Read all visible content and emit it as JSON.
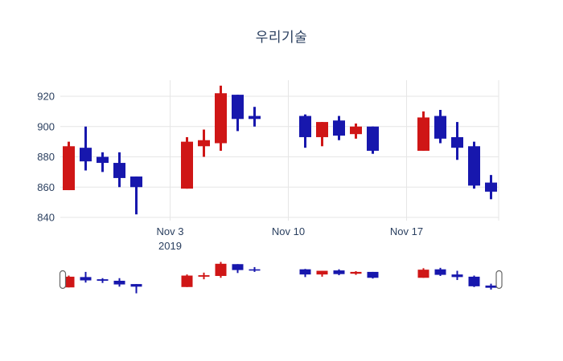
{
  "chart_data": {
    "type": "candlestick",
    "title": "우리기술",
    "xlabel": "",
    "ylabel": "",
    "ylim": [
      838,
      931
    ],
    "grid": "on",
    "yticks": [
      840,
      860,
      880,
      900,
      920
    ],
    "xticks": [
      {
        "label": "Nov 3",
        "sublabel": "2019",
        "day": 6
      },
      {
        "label": "Nov 10",
        "sublabel": "",
        "day": 13
      },
      {
        "label": "Nov 17",
        "sublabel": "",
        "day": 20
      }
    ],
    "colors": {
      "up": "#cf1616",
      "down": "#1717ad",
      "grid": "#e6e6e6",
      "text": "#2a3f5f",
      "handle_fill": "#ffffff",
      "handle_border": "#666666",
      "background": "#ffffff"
    },
    "candles": [
      {
        "date": "Oct 28",
        "day": 0,
        "open": 858,
        "high": 890,
        "low": 858,
        "close": 887
      },
      {
        "date": "Oct 29",
        "day": 1,
        "open": 886,
        "high": 900,
        "low": 871,
        "close": 877
      },
      {
        "date": "Oct 30",
        "day": 2,
        "open": 880,
        "high": 883,
        "low": 870,
        "close": 876
      },
      {
        "date": "Oct 31",
        "day": 3,
        "open": 876,
        "high": 883,
        "low": 860,
        "close": 866
      },
      {
        "date": "Nov 1",
        "day": 4,
        "open": 867,
        "high": 867,
        "low": 842,
        "close": 860
      },
      {
        "date": "Nov 4",
        "day": 7,
        "open": 859,
        "high": 893,
        "low": 859,
        "close": 890
      },
      {
        "date": "Nov 5",
        "day": 8,
        "open": 887,
        "high": 898,
        "low": 880,
        "close": 891
      },
      {
        "date": "Nov 6",
        "day": 9,
        "open": 889,
        "high": 927,
        "low": 884,
        "close": 922
      },
      {
        "date": "Nov 7",
        "day": 10,
        "open": 921,
        "high": 921,
        "low": 897,
        "close": 905
      },
      {
        "date": "Nov 8",
        "day": 11,
        "open": 907,
        "high": 913,
        "low": 900,
        "close": 905
      },
      {
        "date": "Nov 11",
        "day": 14,
        "open": 907,
        "high": 908,
        "low": 886,
        "close": 893
      },
      {
        "date": "Nov 12",
        "day": 15,
        "open": 893,
        "high": 903,
        "low": 887,
        "close": 903
      },
      {
        "date": "Nov 13",
        "day": 16,
        "open": 904,
        "high": 907,
        "low": 891,
        "close": 894
      },
      {
        "date": "Nov 14",
        "day": 17,
        "open": 895,
        "high": 902,
        "low": 892,
        "close": 900
      },
      {
        "date": "Nov 15",
        "day": 18,
        "open": 900,
        "high": 900,
        "low": 882,
        "close": 884
      },
      {
        "date": "Nov 18",
        "day": 21,
        "open": 884,
        "high": 910,
        "low": 884,
        "close": 906
      },
      {
        "date": "Nov 19",
        "day": 22,
        "open": 907,
        "high": 911,
        "low": 889,
        "close": 892
      },
      {
        "date": "Nov 20",
        "day": 23,
        "open": 893,
        "high": 903,
        "low": 878,
        "close": 886
      },
      {
        "date": "Nov 21",
        "day": 24,
        "open": 887,
        "high": 890,
        "low": 859,
        "close": 861
      },
      {
        "date": "Nov 22",
        "day": 25,
        "open": 863,
        "high": 868,
        "low": 852,
        "close": 857
      }
    ],
    "rangeslider": {
      "present": true,
      "handles": [
        "left",
        "right"
      ]
    }
  }
}
